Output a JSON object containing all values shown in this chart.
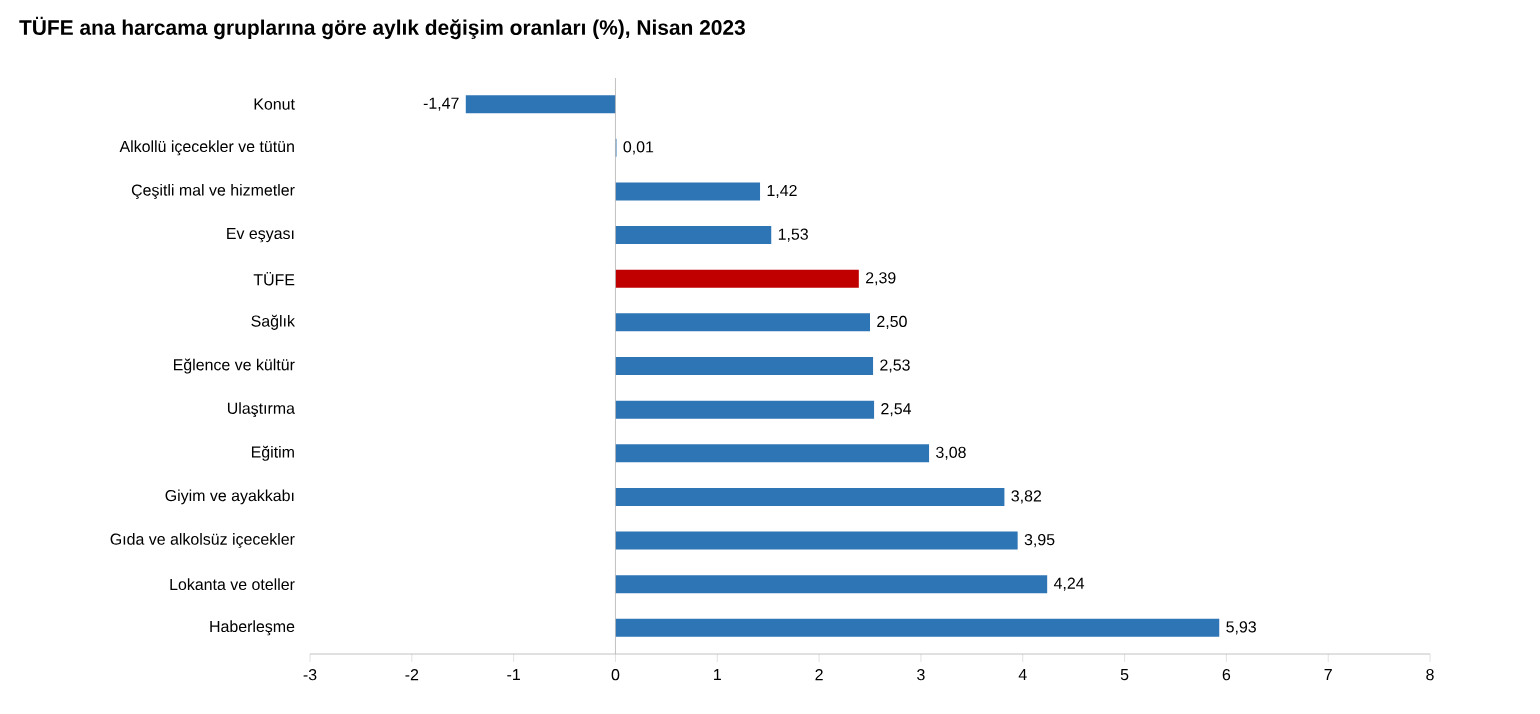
{
  "chart_data": {
    "type": "bar",
    "orientation": "horizontal",
    "title": "TÜFE ana harcama gruplarına göre aylık değişim oranları (%), Nisan 2023",
    "categories": [
      "Konut",
      "Alkollü içecekler ve tütün",
      "Çeşitli mal ve hizmetler",
      "Ev eşyası",
      "TÜFE",
      "Sağlık",
      "Eğlence ve kültür",
      "Ulaştırma",
      "Eğitim",
      "Giyim ve ayakkabı",
      "Gıda ve alkolsüz içecekler",
      "Lokanta ve oteller",
      "Haberleşme"
    ],
    "values": [
      -1.47,
      0.01,
      1.42,
      1.53,
      2.39,
      2.5,
      2.53,
      2.54,
      3.08,
      3.82,
      3.95,
      4.24,
      5.93
    ],
    "value_labels": [
      "-1,47",
      "0,01",
      "1,42",
      "1,53",
      "2,39",
      "2,50",
      "2,53",
      "2,54",
      "3,08",
      "3,82",
      "3,95",
      "4,24",
      "5,93"
    ],
    "colors": [
      "#2e75b6",
      "#2e75b6",
      "#2e75b6",
      "#2e75b6",
      "#c00000",
      "#2e75b6",
      "#2e75b6",
      "#2e75b6",
      "#2e75b6",
      "#2e75b6",
      "#2e75b6",
      "#2e75b6",
      "#2e75b6"
    ],
    "xlim": [
      -3,
      8
    ],
    "xticks": [
      -3,
      -2,
      -1,
      0,
      1,
      2,
      3,
      4,
      5,
      6,
      7,
      8
    ]
  }
}
